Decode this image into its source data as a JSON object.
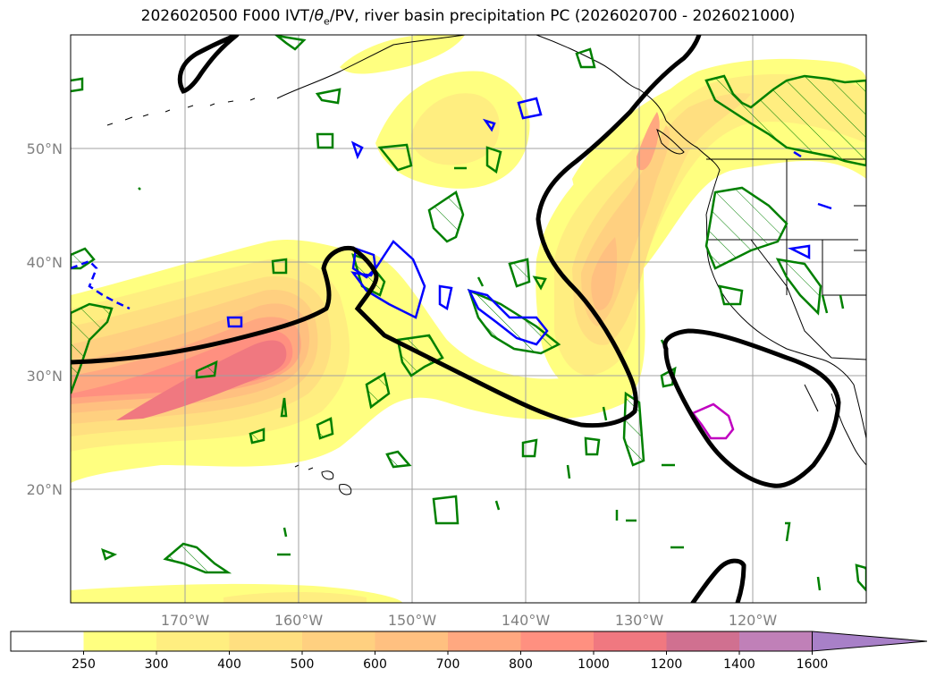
{
  "title": {
    "prefix": "2026020500 F000 IVT/",
    "theta": "θ",
    "theta_sub": "e",
    "suffix": "/PV, river basin precipitation PC (2026020700 - 2026021000)"
  },
  "map": {
    "lat_ticks": [
      "50°N",
      "40°N",
      "30°N",
      "20°N"
    ],
    "lon_ticks": [
      "170°W",
      "160°W",
      "150°W",
      "140°W",
      "130°W",
      "120°W"
    ]
  },
  "colorbar": {
    "levels": [
      "250",
      "300",
      "400",
      "500",
      "600",
      "700",
      "800",
      "1000",
      "1200",
      "1400",
      "1600"
    ],
    "colors": [
      "#ffffff",
      "#ffff80",
      "#ffee80",
      "#ffdf80",
      "#ffd080",
      "#ffc080",
      "#ffa880",
      "#ff9080",
      "#f07880",
      "#d07090",
      "#c080b8",
      "#a880c8"
    ]
  },
  "colors": {
    "pv_contour": "#000000",
    "theta_e_pos": "#008000",
    "theta_e_neg": "#0000ff",
    "precip_pc": "#c000c0"
  }
}
